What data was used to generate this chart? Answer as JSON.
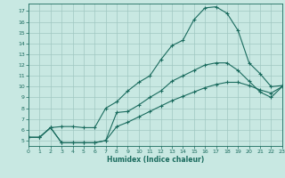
{
  "xlabel": "Humidex (Indice chaleur)",
  "xlim": [
    0,
    23
  ],
  "ylim": [
    4.5,
    17.7
  ],
  "xticks": [
    0,
    1,
    2,
    3,
    4,
    5,
    6,
    7,
    8,
    9,
    10,
    11,
    12,
    13,
    14,
    15,
    16,
    17,
    18,
    19,
    20,
    21,
    22,
    23
  ],
  "yticks": [
    5,
    6,
    7,
    8,
    9,
    10,
    11,
    12,
    13,
    14,
    15,
    16,
    17
  ],
  "bg_color": "#c8e8e2",
  "grid_color": "#a0c8c2",
  "line_color": "#1a6b5e",
  "line1_x": [
    0,
    1,
    2,
    3,
    4,
    5,
    6,
    7,
    8,
    9,
    10,
    11,
    12,
    13,
    14,
    15,
    16,
    17,
    18,
    19,
    20,
    21,
    22,
    23
  ],
  "line1_y": [
    5.3,
    5.3,
    6.2,
    6.3,
    6.3,
    6.2,
    6.2,
    8.0,
    8.6,
    9.6,
    10.4,
    11.0,
    12.5,
    13.8,
    14.3,
    16.2,
    17.3,
    17.4,
    16.8,
    15.2,
    12.2,
    11.2,
    10.0,
    10.1
  ],
  "line2_x": [
    0,
    1,
    2,
    3,
    4,
    5,
    6,
    7,
    8,
    9,
    10,
    11,
    12,
    13,
    14,
    15,
    16,
    17,
    18,
    19,
    20,
    21,
    22,
    23
  ],
  "line2_y": [
    5.3,
    5.3,
    6.2,
    4.8,
    4.8,
    4.8,
    4.8,
    5.0,
    7.6,
    7.7,
    8.3,
    9.0,
    9.6,
    10.5,
    11.0,
    11.5,
    12.0,
    12.2,
    12.2,
    11.5,
    10.5,
    9.5,
    9.0,
    10.0
  ],
  "line3_x": [
    0,
    1,
    2,
    3,
    4,
    5,
    6,
    7,
    8,
    9,
    10,
    11,
    12,
    13,
    14,
    15,
    16,
    17,
    18,
    19,
    20,
    21,
    22,
    23
  ],
  "line3_y": [
    5.3,
    5.3,
    6.2,
    4.8,
    4.8,
    4.8,
    4.8,
    5.0,
    6.3,
    6.7,
    7.2,
    7.7,
    8.2,
    8.7,
    9.1,
    9.5,
    9.9,
    10.2,
    10.4,
    10.4,
    10.1,
    9.7,
    9.4,
    10.0
  ]
}
